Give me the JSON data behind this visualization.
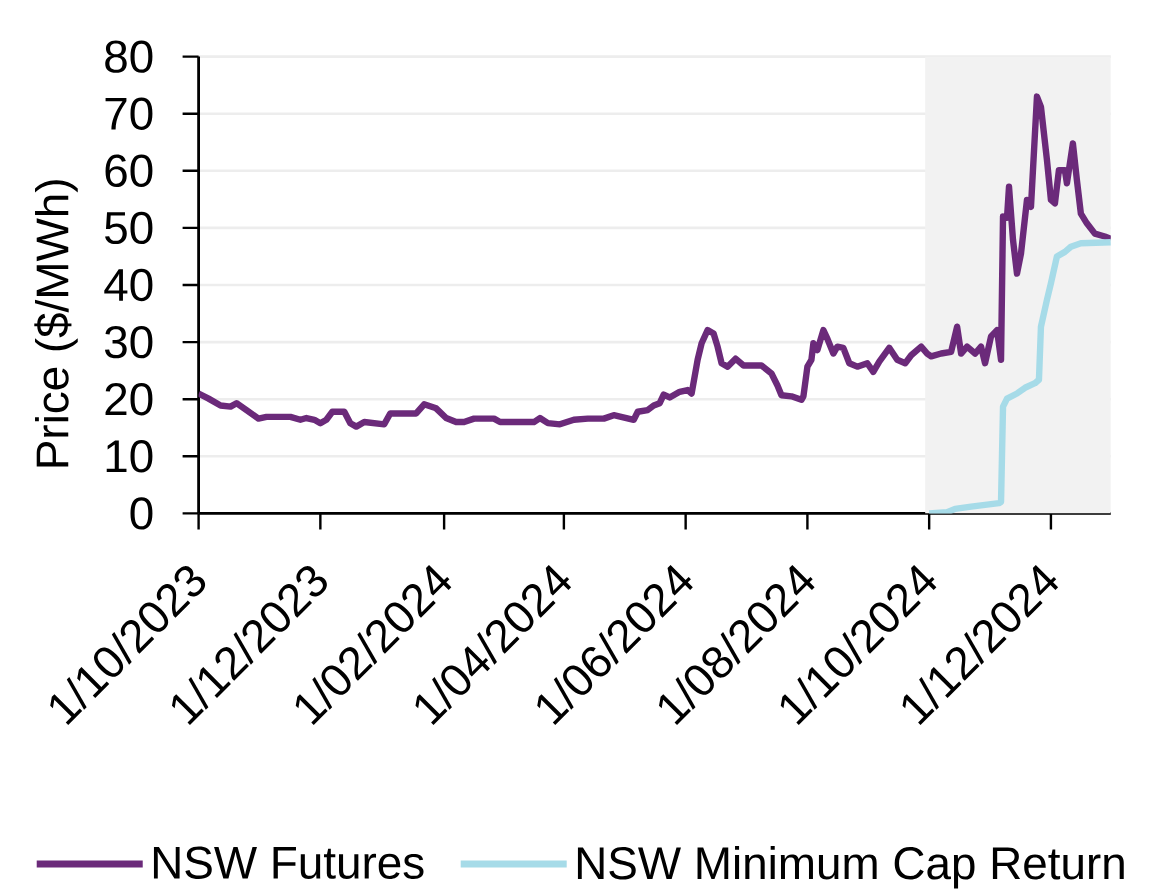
{
  "chart_data": {
    "type": "line",
    "ylabel": "Price ($/MWh)",
    "xlim": [
      "2023-10-01",
      "2024-12-31"
    ],
    "xticks": [
      {
        "value": "2023-10-01",
        "label": "1/10/2023"
      },
      {
        "value": "2023-12-01",
        "label": "1/12/2023"
      },
      {
        "value": "2024-02-01",
        "label": "1/02/2024"
      },
      {
        "value": "2024-04-01",
        "label": "1/04/2024"
      },
      {
        "value": "2024-06-01",
        "label": "1/06/2024"
      },
      {
        "value": "2024-08-01",
        "label": "1/08/2024"
      },
      {
        "value": "2024-10-01",
        "label": "1/10/2024"
      },
      {
        "value": "2024-12-01",
        "label": "1/12/2024"
      }
    ],
    "ylim": [
      0,
      80
    ],
    "yticks": [
      0,
      10,
      20,
      30,
      40,
      50,
      60,
      70,
      80
    ],
    "grid": "y",
    "legend": "bottom",
    "marker": "none",
    "line_style": "solid",
    "bands": [
      {
        "axis": "x",
        "from": "2024-09-29",
        "to": "2024-12-31",
        "color": "#f2f2f2"
      }
    ],
    "series": [
      {
        "name": "NSW Futures",
        "color": "#6b2a7a",
        "x": [
          "2023-10-01",
          "2023-10-06",
          "2023-10-12",
          "2023-10-17",
          "2023-10-20",
          "2023-10-25",
          "2023-10-31",
          "2023-11-04",
          "2023-11-16",
          "2023-11-21",
          "2023-11-24",
          "2023-11-28",
          "2023-12-01",
          "2023-12-04",
          "2023-12-07",
          "2023-12-13",
          "2023-12-16",
          "2023-12-19",
          "2023-12-23",
          "2024-01-02",
          "2024-01-05",
          "2024-01-18",
          "2024-01-22",
          "2024-01-28",
          "2024-02-02",
          "2024-02-07",
          "2024-02-11",
          "2024-02-16",
          "2024-02-26",
          "2024-02-29",
          "2024-03-17",
          "2024-03-20",
          "2024-03-24",
          "2024-03-30",
          "2024-04-06",
          "2024-04-13",
          "2024-04-21",
          "2024-04-26",
          "2024-05-06",
          "2024-05-08",
          "2024-05-13",
          "2024-05-16",
          "2024-05-19",
          "2024-05-21",
          "2024-05-24",
          "2024-05-29",
          "2024-06-02",
          "2024-06-04",
          "2024-06-07",
          "2024-06-09",
          "2024-06-12",
          "2024-06-15",
          "2024-06-17",
          "2024-06-19",
          "2024-06-22",
          "2024-06-26",
          "2024-06-30",
          "2024-07-09",
          "2024-07-14",
          "2024-07-17",
          "2024-07-19",
          "2024-07-24",
          "2024-07-29",
          "2024-07-30",
          "2024-08-01",
          "2024-08-03",
          "2024-08-04",
          "2024-08-06",
          "2024-08-09",
          "2024-08-11",
          "2024-08-14",
          "2024-08-16",
          "2024-08-19",
          "2024-08-22",
          "2024-08-26",
          "2024-08-31",
          "2024-09-03",
          "2024-09-06",
          "2024-09-11",
          "2024-09-15",
          "2024-09-19",
          "2024-09-22",
          "2024-09-27",
          "2024-09-30",
          "2024-10-02",
          "2024-10-07",
          "2024-10-12",
          "2024-10-15",
          "2024-10-17",
          "2024-10-20",
          "2024-10-24",
          "2024-10-27",
          "2024-10-29",
          "2024-11-01",
          "2024-11-04",
          "2024-11-06",
          "2024-11-07",
          "2024-11-09",
          "2024-11-10",
          "2024-11-12",
          "2024-11-14",
          "2024-11-16",
          "2024-11-19",
          "2024-11-21",
          "2024-11-24",
          "2024-11-26",
          "2024-11-29",
          "2024-12-01",
          "2024-12-03",
          "2024-12-05",
          "2024-12-08",
          "2024-12-09",
          "2024-12-12",
          "2024-12-14",
          "2024-12-16",
          "2024-12-19",
          "2024-12-23",
          "2024-12-28",
          "2024-12-31"
        ],
        "values": [
          21.0,
          20.1,
          18.9,
          18.7,
          19.3,
          18.1,
          16.6,
          16.9,
          16.9,
          16.4,
          16.7,
          16.4,
          15.8,
          16.4,
          17.8,
          17.8,
          15.8,
          15.2,
          16.0,
          15.6,
          17.5,
          17.5,
          19.1,
          18.4,
          16.7,
          16.0,
          16.0,
          16.6,
          16.6,
          16.0,
          16.0,
          16.7,
          15.8,
          15.6,
          16.4,
          16.6,
          16.6,
          17.2,
          16.4,
          17.8,
          18.1,
          18.9,
          19.3,
          20.8,
          20.3,
          21.3,
          21.6,
          21.0,
          26.9,
          29.8,
          32.1,
          31.5,
          29.2,
          26.3,
          25.7,
          27.1,
          25.9,
          25.9,
          24.5,
          22.4,
          20.7,
          20.5,
          19.9,
          20.5,
          25.7,
          26.9,
          29.8,
          28.6,
          32.1,
          30.6,
          28.0,
          29.2,
          29.0,
          26.3,
          25.7,
          26.3,
          24.8,
          26.6,
          29.0,
          26.9,
          26.3,
          27.7,
          29.2,
          28.0,
          27.5,
          28.0,
          28.3,
          32.7,
          28.0,
          29.2,
          28.0,
          29.2,
          26.3,
          31.0,
          32.1,
          26.9,
          52.0,
          51.8,
          57.2,
          47.9,
          42.0,
          45.5,
          54.9,
          53.7,
          73.0,
          71.2,
          61.9,
          54.9,
          54.3,
          60.1,
          60.1,
          57.8,
          64.8,
          58.4,
          52.5,
          50.8,
          49.0,
          48.5,
          48.1
        ]
      },
      {
        "name": "NSW Minimum Cap Return",
        "color": "#a6dbe8",
        "x": [
          "2024-10-01",
          "2024-10-10",
          "2024-10-14",
          "2024-10-22",
          "2024-11-05",
          "2024-11-06",
          "2024-11-07",
          "2024-11-09",
          "2024-11-14",
          "2024-11-18",
          "2024-11-23",
          "2024-11-25",
          "2024-11-26",
          "2024-11-29",
          "2024-12-01",
          "2024-12-04",
          "2024-12-08",
          "2024-12-11",
          "2024-12-16",
          "2024-12-31"
        ],
        "values": [
          0,
          0.2,
          0.8,
          1.2,
          1.8,
          2.0,
          18.7,
          20.1,
          21.0,
          22.0,
          22.8,
          23.4,
          32.7,
          37.4,
          40.3,
          45.0,
          45.8,
          46.7,
          47.3,
          47.5
        ]
      }
    ]
  }
}
